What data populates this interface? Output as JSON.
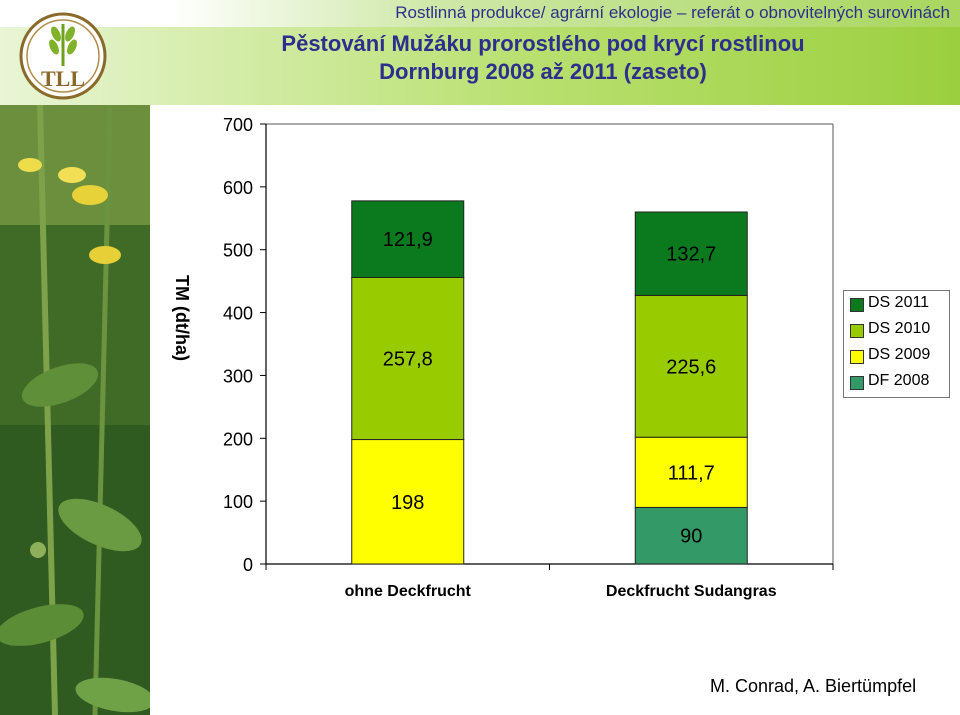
{
  "header": {
    "subtitle": "Rostlinná produkce/ agrární ekologie – referát o obnovitelných surovinách",
    "title_line1": "Pěstování Mužáku prorostlého pod krycí rostlinou",
    "title_line2": "Dornburg 2008 až 2011 (zaseto)",
    "logo_text": "TLL"
  },
  "footer": {
    "author": "M. Conrad, A. Biertümpfel"
  },
  "colors": {
    "DS 2011": "#0b7a1e",
    "DS 2010": "#99cc00",
    "DS 2009": "#ffff00",
    "DF 2008": "#339966",
    "title": "#2e2f8c"
  },
  "chart_data": {
    "type": "bar",
    "stacked": true,
    "ylabel": "TM (dt/ha)",
    "ylim": [
      0,
      700
    ],
    "yticks": [
      "0",
      "100",
      "200",
      "300",
      "400",
      "500",
      "600",
      "700"
    ],
    "categories": [
      "ohne Deckfrucht",
      "Deckfrucht Sudangras"
    ],
    "series": [
      {
        "name": "DF 2008",
        "values": [
          0,
          90
        ],
        "labels": [
          "",
          "90"
        ]
      },
      {
        "name": "DS 2009",
        "values": [
          198,
          111.7
        ],
        "labels": [
          "198",
          "111,7"
        ]
      },
      {
        "name": "DS 2010",
        "values": [
          257.8,
          225.6
        ],
        "labels": [
          "257,8",
          "225,6"
        ]
      },
      {
        "name": "DS 2011",
        "values": [
          121.9,
          132.7
        ],
        "labels": [
          "121,9",
          "132,7"
        ]
      }
    ],
    "legend": {
      "position": "right",
      "items": [
        "DS 2011",
        "DS 2010",
        "DS 2009",
        "DF 2008"
      ]
    },
    "grid": false
  }
}
